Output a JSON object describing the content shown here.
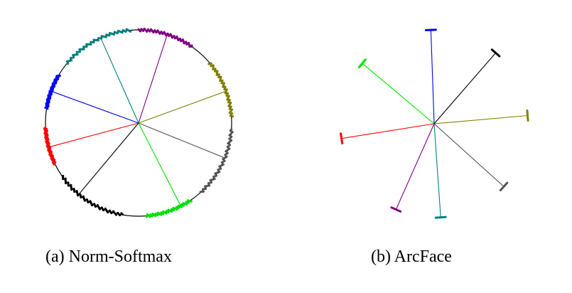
{
  "figure": {
    "subfigures": [
      {
        "id": "a",
        "caption": "(a)  Norm-Softmax",
        "classes": [
          {
            "color": "#0000ff",
            "angle_deg": 160
          },
          {
            "color": "#ff0000",
            "angle_deg": 195
          },
          {
            "color": "#000000",
            "angle_deg": 230
          },
          {
            "color": "#00e000",
            "angle_deg": 297
          },
          {
            "color": "#555555",
            "angle_deg": 338
          },
          {
            "color": "#808000",
            "angle_deg": 20
          },
          {
            "color": "#800080",
            "angle_deg": 72
          },
          {
            "color": "#008080",
            "angle_deg": 114
          }
        ],
        "arc_samples": [
          {
            "color": "#0000ff",
            "from_deg": 149,
            "to_deg": 171
          },
          {
            "color": "#ff0000",
            "from_deg": 183,
            "to_deg": 206
          },
          {
            "color": "#000000",
            "from_deg": 215,
            "to_deg": 260
          },
          {
            "color": "#00e000",
            "from_deg": 275,
            "to_deg": 304
          },
          {
            "color": "#555555",
            "from_deg": 312,
            "to_deg": 356
          },
          {
            "color": "#808000",
            "from_deg": 4,
            "to_deg": 40
          },
          {
            "color": "#800080",
            "from_deg": 55,
            "to_deg": 90
          },
          {
            "color": "#008080",
            "from_deg": 95,
            "to_deg": 140
          }
        ]
      },
      {
        "id": "b",
        "caption": "(b)  ArcFace",
        "classes": [
          {
            "color": "#0000ff",
            "angle_deg": 92
          },
          {
            "color": "#00e000",
            "angle_deg": 140
          },
          {
            "color": "#ff0000",
            "angle_deg": 189
          },
          {
            "color": "#800080",
            "angle_deg": 246
          },
          {
            "color": "#008080",
            "angle_deg": 274
          },
          {
            "color": "#555555",
            "angle_deg": 318
          },
          {
            "color": "#808000",
            "angle_deg": 5
          },
          {
            "color": "#000000",
            "angle_deg": 49
          }
        ]
      }
    ]
  }
}
